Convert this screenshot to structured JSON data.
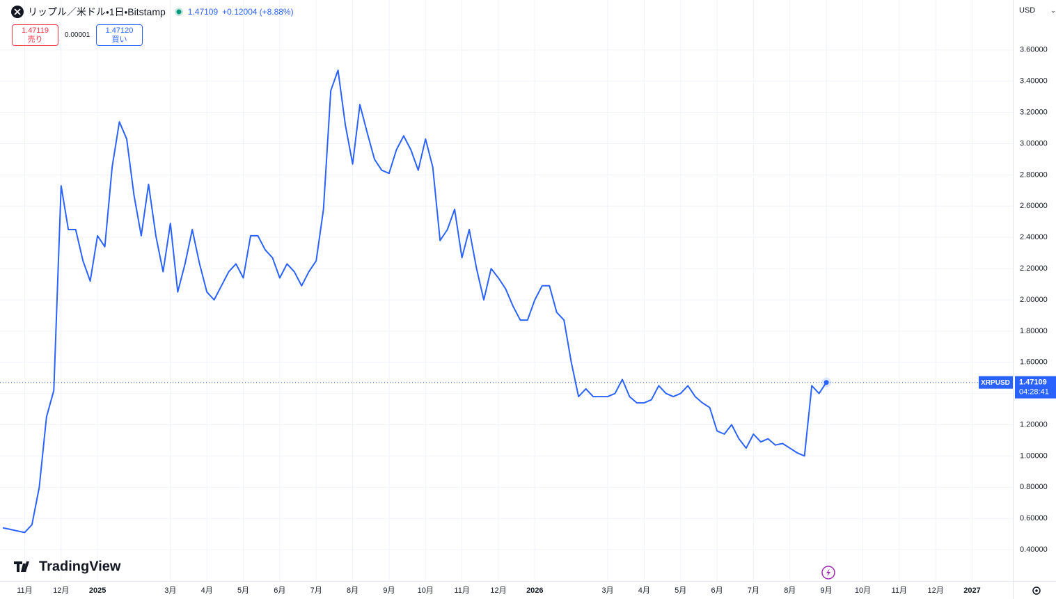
{
  "header": {
    "title": "リップル／米ドル・1日・Bitstamp",
    "last": "1.47109",
    "change": "+0.12004",
    "change_pct": "(+8.88%)",
    "sell_price": "1.47119",
    "sell_label": "売り",
    "spread": "0.00001",
    "buy_price": "1.47120",
    "buy_label": "買い",
    "currency": "USD",
    "brand": "TradingView"
  },
  "chart_data": {
    "type": "line",
    "categories": [
      null,
      null,
      null,
      "11月",
      null,
      null,
      null,
      null,
      "12月",
      null,
      null,
      null,
      null,
      "2025",
      null,
      null,
      null,
      null,
      null,
      null,
      null,
      null,
      null,
      "3月",
      null,
      null,
      null,
      null,
      "4月",
      null,
      null,
      null,
      null,
      "5月",
      null,
      null,
      null,
      null,
      "6月",
      null,
      null,
      null,
      null,
      "7月",
      null,
      null,
      null,
      null,
      "8月",
      null,
      null,
      null,
      null,
      "9月",
      null,
      null,
      null,
      null,
      "10月",
      null,
      null,
      null,
      null,
      "11月",
      null,
      null,
      null,
      null,
      "12月",
      null,
      null,
      null,
      null,
      "2026",
      null,
      null,
      null,
      null,
      null,
      null,
      null,
      null,
      null,
      "3月",
      null,
      null,
      null,
      null,
      "4月",
      null,
      null,
      null,
      null,
      "5月",
      null,
      null,
      null,
      null,
      "6月",
      null,
      null,
      null,
      null,
      "7月",
      null,
      null,
      null,
      null,
      "8月",
      null,
      null,
      null,
      null,
      "9月",
      null,
      null,
      null,
      null,
      "10月",
      null,
      null,
      null,
      null,
      "11月",
      null,
      null,
      null,
      null,
      "12月",
      null,
      null,
      null,
      null,
      "2027",
      null,
      null,
      null,
      null,
      null
    ],
    "series": [
      {
        "name": "XRPUSD",
        "color": "#2962ff",
        "values": [
          0.54,
          0.53,
          0.52,
          0.51,
          0.56,
          0.8,
          1.25,
          1.42,
          2.73,
          2.45,
          2.45,
          2.25,
          2.12,
          2.41,
          2.34,
          2.85,
          3.14,
          3.03,
          2.67,
          2.41,
          2.74,
          2.41,
          2.18,
          2.49,
          2.05,
          2.23,
          2.45,
          2.23,
          2.05,
          2.0,
          2.09,
          2.18,
          2.23,
          2.14,
          2.41,
          2.41,
          2.32,
          2.27,
          2.14,
          2.23,
          2.18,
          2.09,
          2.18,
          2.25,
          2.58,
          3.34,
          3.47,
          3.12,
          2.87,
          3.25,
          3.07,
          2.9,
          2.83,
          2.81,
          2.96,
          3.05,
          2.96,
          2.83,
          3.03,
          2.85,
          2.38,
          2.45,
          2.58,
          2.27,
          2.45,
          2.2,
          2.0,
          2.2,
          2.14,
          2.07,
          1.96,
          1.87,
          1.87,
          2.0,
          2.09,
          2.09,
          1.92,
          1.87,
          1.6,
          1.38,
          1.43,
          1.38,
          1.38,
          1.38,
          1.4,
          1.49,
          1.38,
          1.34,
          1.34,
          1.36,
          1.45,
          1.4,
          1.38,
          1.4,
          1.45,
          1.38,
          1.34,
          1.31,
          1.16,
          1.14,
          1.2,
          1.11,
          1.05,
          1.14,
          1.09,
          1.11,
          1.07,
          1.08,
          1.05,
          1.02,
          1.0,
          1.45,
          1.4,
          1.47109,
          null,
          null,
          null,
          null,
          null,
          null,
          null,
          null,
          null,
          null,
          null,
          null,
          null,
          null,
          null,
          null,
          null,
          null,
          null,
          null,
          null,
          null,
          null,
          null,
          null
        ]
      }
    ],
    "ylim": [
      0.2,
      3.92
    ],
    "yticks": [
      {
        "value": 0.4,
        "label": "0.40000"
      },
      {
        "value": 0.6,
        "label": "0.60000"
      },
      {
        "value": 0.8,
        "label": "0.80000"
      },
      {
        "value": 1.0,
        "label": "1.00000"
      },
      {
        "value": 1.2,
        "label": "1.20000"
      },
      {
        "value": 1.4,
        "label": "1.40000"
      },
      {
        "value": 1.6,
        "label": "1.60000"
      },
      {
        "value": 1.8,
        "label": "1.80000"
      },
      {
        "value": 2.0,
        "label": "2.00000"
      },
      {
        "value": 2.2,
        "label": "2.20000"
      },
      {
        "value": 2.4,
        "label": "2.40000"
      },
      {
        "value": 2.6,
        "label": "2.60000"
      },
      {
        "value": 2.8,
        "label": "2.80000"
      },
      {
        "value": 3.0,
        "label": "3.00000"
      },
      {
        "value": 3.2,
        "label": "3.20000"
      },
      {
        "value": 3.4,
        "label": "3.40000"
      },
      {
        "value": 3.6,
        "label": "3.60000"
      }
    ],
    "grid": true,
    "price_tag": {
      "symbol": "XRPUSD",
      "price": 1.47109,
      "countdown": "04:28:41"
    }
  }
}
